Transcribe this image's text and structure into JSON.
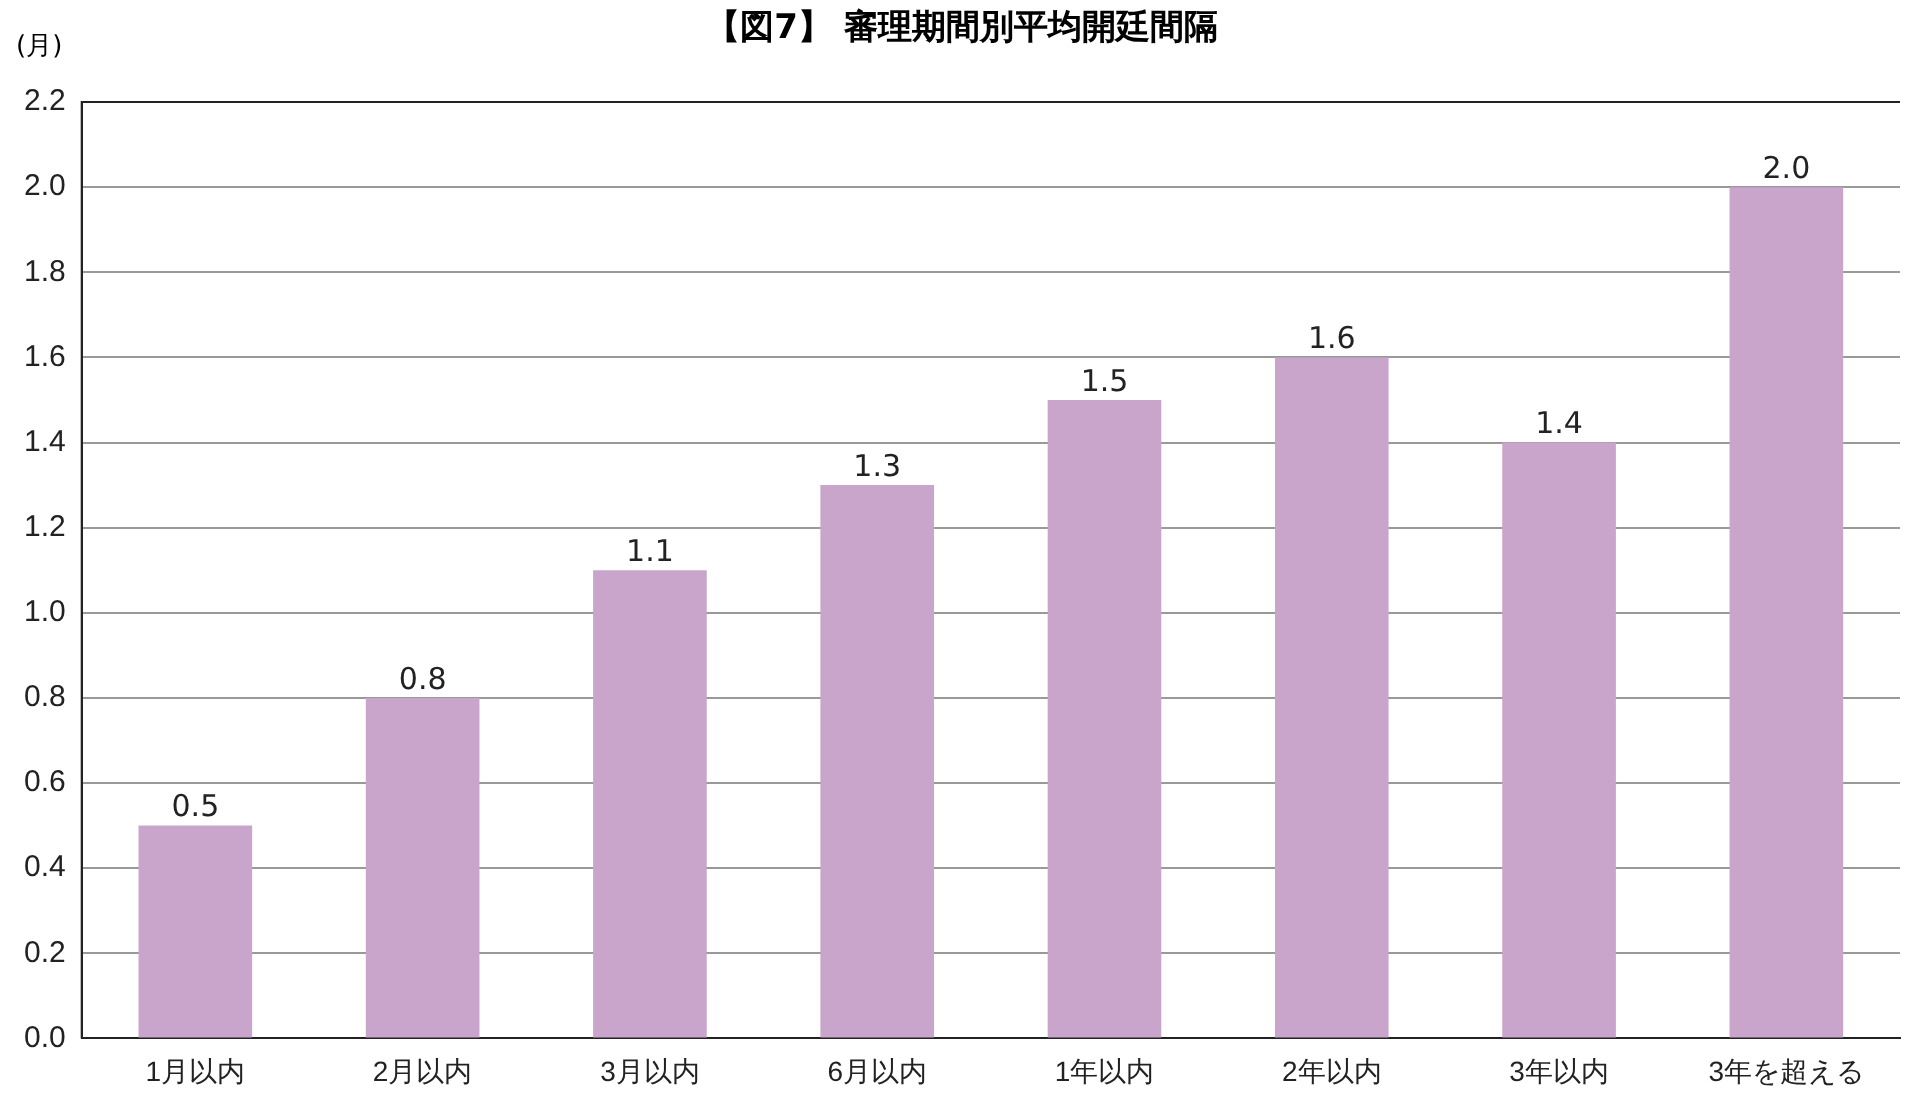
{
  "chart_data": {
    "type": "bar",
    "title": "【図7】 審理期間別平均開廷間隔",
    "ylabel": "(月)",
    "categories": [
      "1月以内",
      "2月以内",
      "3月以内",
      "6月以内",
      "1年以内",
      "2年以内",
      "3年以内",
      "3年を超える"
    ],
    "values": [
      0.5,
      0.8,
      1.1,
      1.3,
      1.5,
      1.6,
      1.4,
      2.0
    ],
    "color": "#c9a5cc",
    "ylim": [
      0,
      2.2
    ],
    "yticks": [
      {
        "value": 0,
        "label": "0.0"
      },
      0.2,
      0.4,
      0.6,
      0.8,
      {
        "value": 1,
        "label": "1.0"
      },
      1.2,
      1.4,
      1.6,
      1.8,
      {
        "value": 2,
        "label": "2.0"
      },
      2.2
    ],
    "grid": "y",
    "value_labels": [
      "0.5",
      "0.8",
      "1.1",
      "1.3",
      "1.5",
      "1.6",
      "1.4",
      "2.0"
    ]
  }
}
